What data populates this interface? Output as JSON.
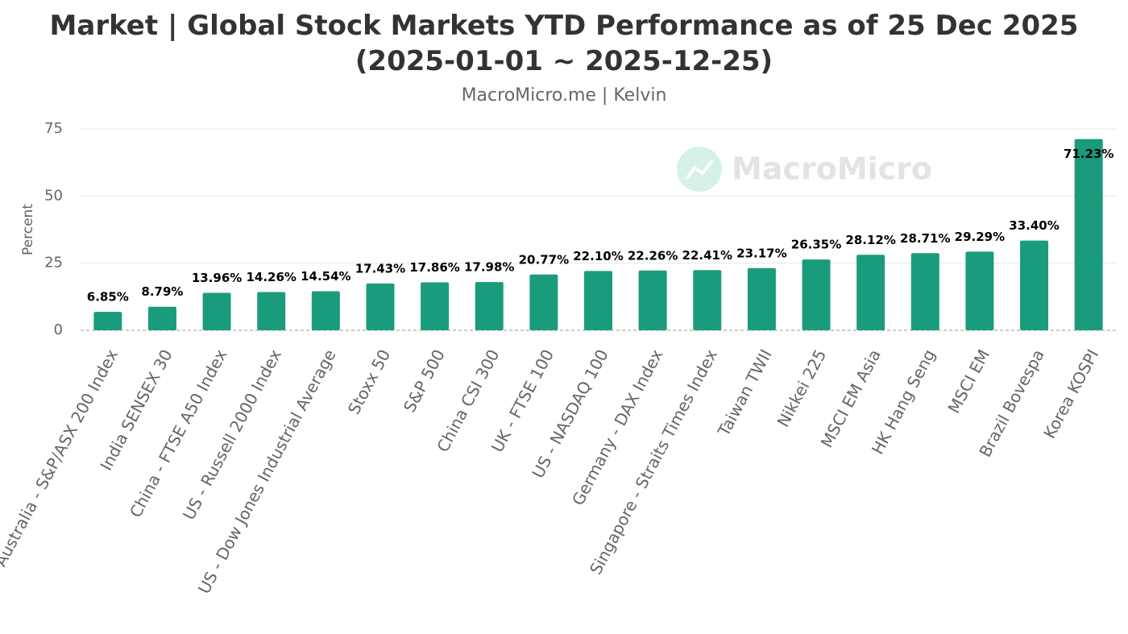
{
  "chart_data": {
    "type": "bar",
    "title": "Market | Global Stock Markets YTD Performance as of 25 Dec 2025 (2025-01-01 ~ 2025-12-25)",
    "subtitle": "MacroMicro.me | Kelvin",
    "watermark": "MacroMicro",
    "y_label": "Percent",
    "categories": [
      "Australia - S&P/ASX 200 Index",
      "India SENSEX 30",
      "China - FTSE A50 Index",
      "US - Russell 2000 Index",
      "US - Dow Jones Industrial Average",
      "Stoxx 50",
      "S&P 500",
      "China CSI 300",
      "UK - FTSE 100",
      "US - NASDAQ 100",
      "Germany - DAX Index",
      "Singapore - Straits Times Index",
      "Taiwan TWII",
      "Nikkei 225",
      "MSCI EM Asia",
      "HK Hang Seng",
      "MSCI EM",
      "Brazil Bovespa",
      "Korea KOSPI"
    ],
    "values": [
      6.85,
      8.79,
      13.96,
      14.26,
      14.54,
      17.43,
      17.86,
      17.98,
      20.77,
      22.1,
      22.26,
      22.41,
      23.17,
      26.35,
      28.12,
      28.71,
      29.29,
      33.4,
      71.23
    ],
    "value_labels": [
      "6.85%",
      "8.79%",
      "13.96%",
      "14.26%",
      "14.54%",
      "17.43%",
      "17.86%",
      "17.98%",
      "20.77%",
      "22.10%",
      "22.26%",
      "22.41%",
      "23.17%",
      "26.35%",
      "28.12%",
      "28.71%",
      "29.29%",
      "33.40%",
      "71.23%"
    ],
    "color": "#1a9c7c",
    "ylim": [
      0,
      75
    ],
    "yticks": [
      0,
      25,
      50,
      75
    ],
    "grid": true
  }
}
